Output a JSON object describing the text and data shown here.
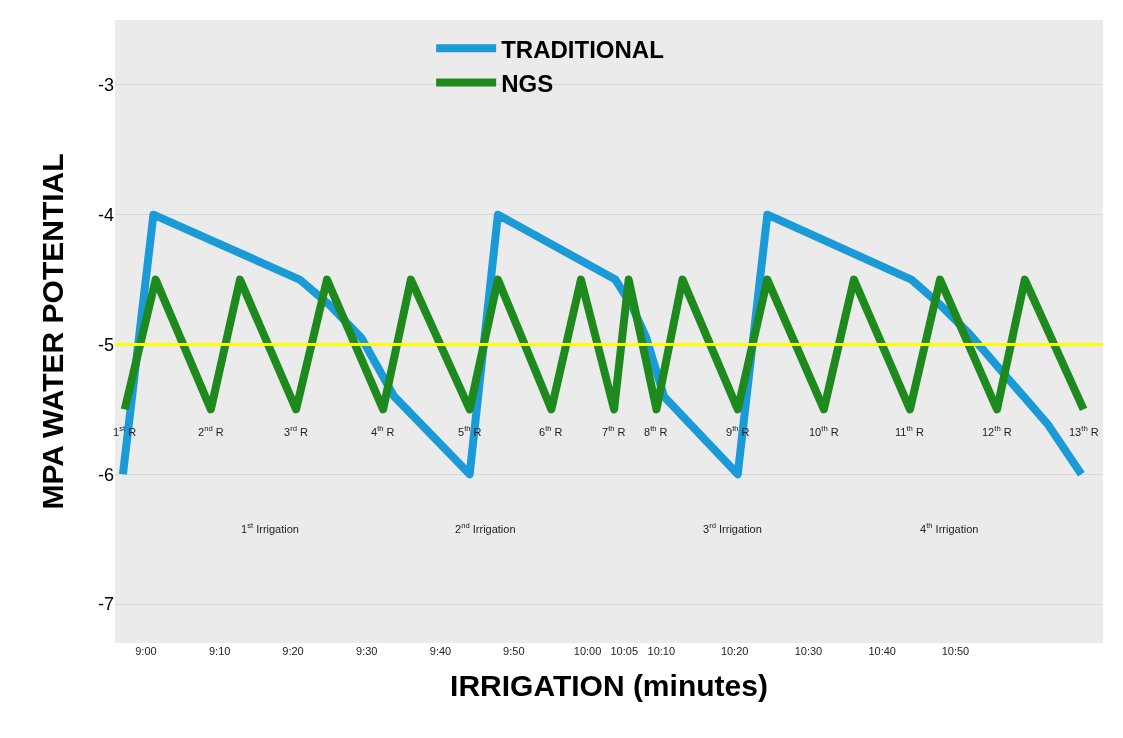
{
  "chart_data": {
    "type": "line",
    "xlabel": "IRRIGATION (minutes)",
    "ylabel": "MPA WATER POTENTIAL",
    "xlim": [
      8.93,
      11.167
    ],
    "xticks": [
      {
        "value": 9,
        "label": "9:00"
      },
      {
        "value": 9.167,
        "label": "9:10"
      },
      {
        "value": 9.333,
        "label": "9:20"
      },
      {
        "value": 9.5,
        "label": "9:30"
      },
      {
        "value": 9.667,
        "label": "9:40"
      },
      {
        "value": 9.833,
        "label": "9:50"
      },
      {
        "value": 10,
        "label": "10:00"
      },
      {
        "value": 10.083,
        "label": "10:05"
      },
      {
        "value": 10.167,
        "label": "10:10"
      },
      {
        "value": 10.333,
        "label": "10:20"
      },
      {
        "value": 10.5,
        "label": "10:30"
      },
      {
        "value": 10.667,
        "label": "10:40"
      },
      {
        "value": 10.833,
        "label": "10:50"
      }
    ],
    "ylim": [
      -7.3,
      -2.5
    ],
    "yticks": [
      -3,
      -4,
      -5,
      -6,
      -7
    ],
    "grid": "y",
    "legend": "top",
    "marker": "none",
    "line_style": "solid",
    "series": [
      {
        "name": "TRADITIONAL",
        "color": "#1a9ad6",
        "x": [
          8.948,
          9.017,
          9.348,
          9.417,
          9.488,
          9.562,
          9.733,
          9.797,
          10.063,
          10.1,
          10.133,
          10.173,
          10.34,
          10.407,
          10.733,
          10.8,
          10.865,
          11.043,
          11.118
        ],
        "values": [
          -6.0,
          -4.0,
          -4.5,
          -4.7,
          -4.95,
          -5.4,
          -6.0,
          -4.0,
          -4.5,
          -4.7,
          -4.95,
          -5.4,
          -6.0,
          -4.0,
          -4.5,
          -4.7,
          -4.92,
          -5.62,
          -6.0
        ]
      },
      {
        "name": "NGS",
        "color": "#1e8a1e",
        "x": [
          8.952,
          9.022,
          9.147,
          9.213,
          9.34,
          9.41,
          9.537,
          9.6,
          9.733,
          9.797,
          9.918,
          9.985,
          10.06,
          10.093,
          10.156,
          10.215,
          10.34,
          10.407,
          10.535,
          10.603,
          10.73,
          10.798,
          10.927,
          10.99,
          11.123
        ],
        "values": [
          -5.5,
          -4.5,
          -5.5,
          -4.5,
          -5.5,
          -4.5,
          -5.5,
          -4.5,
          -5.5,
          -4.5,
          -5.5,
          -4.5,
          -5.5,
          -4.5,
          -5.5,
          -4.5,
          -5.5,
          -4.5,
          -5.5,
          -4.5,
          -5.5,
          -4.5,
          -5.5,
          -4.5,
          -5.5
        ]
      }
    ],
    "ref_lines": [
      {
        "axis": "y",
        "value": -5,
        "color": "#ffff00"
      }
    ],
    "annotations": [
      {
        "text": "1$^{st}$ R",
        "x": 8.952,
        "y": -5.5
      },
      {
        "text": "2$^{nd}$ R",
        "x": 9.147,
        "y": -5.5
      },
      {
        "text": "3$^{rd}$ R",
        "x": 9.34,
        "y": -5.5
      },
      {
        "text": "4$^{th}$ R",
        "x": 9.537,
        "y": -5.5
      },
      {
        "text": "5$^{th}$ R",
        "x": 9.733,
        "y": -5.5
      },
      {
        "text": "6$^{th}$ R",
        "x": 9.918,
        "y": -5.5
      },
      {
        "text": "7$^{th}$ R",
        "x": 10.06,
        "y": -5.5
      },
      {
        "text": "8$^{th}$ R",
        "x": 10.156,
        "y": -5.5
      },
      {
        "text": "9$^{th}$ R",
        "x": 10.34,
        "y": -5.5
      },
      {
        "text": "10$^{th}$ R",
        "x": 10.535,
        "y": -5.5
      },
      {
        "text": "11$^{th}$ R",
        "x": 10.73,
        "y": -5.5
      },
      {
        "text": "12$^{th}$ R",
        "x": 10.927,
        "y": -5.5
      },
      {
        "text": "13$^{th}$ R",
        "x": 11.123,
        "y": -5.5
      },
      "1$^{st}$ Irrigation",
      "2$^{nd}$ Irrigation",
      "3$^{rd}$ Irrigation",
      "4$^{th}$ Irrigation"
    ]
  }
}
